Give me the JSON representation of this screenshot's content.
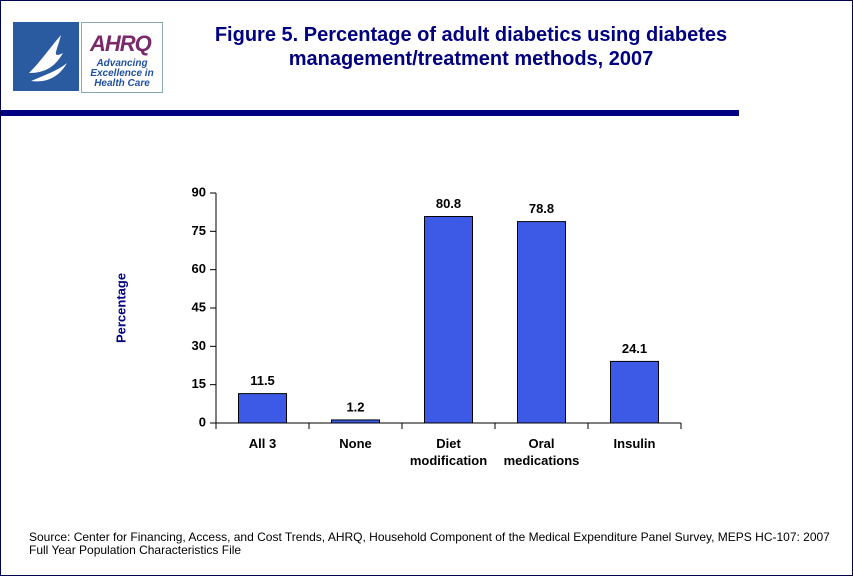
{
  "logo": {
    "name": "AHRQ",
    "tagline": "Advancing Excellence in Health Care"
  },
  "chart_data": {
    "type": "bar",
    "title": "Figure 5. Percentage of adult diabetics using diabetes management/treatment methods, 2007",
    "y_label": "Percentage",
    "categories": [
      "All 3",
      "None",
      "Diet modification",
      "Oral medications",
      "Insulin"
    ],
    "values": [
      11.5,
      1.2,
      80.8,
      78.8,
      24.1
    ],
    "color": "#3c5ae6",
    "ylim": [
      0,
      90
    ],
    "yticks": [
      0,
      15,
      30,
      45,
      60,
      75,
      90
    ]
  },
  "source": "Source: Center for Financing, Access, and Cost Trends, AHRQ, Household Component of the Medical Expenditure Panel Survey, MEPS HC-107: 2007 Full Year Population Characteristics File"
}
